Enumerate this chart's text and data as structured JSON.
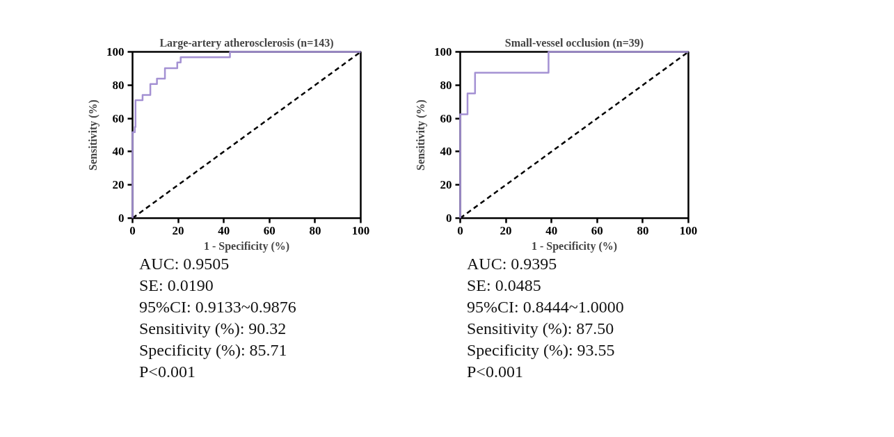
{
  "chart_data": [
    {
      "type": "line",
      "title": "Large-artery atherosclerosis (n=143)",
      "xlabel": "1 - Specificity (%)",
      "ylabel": "Sensitivity (%)",
      "xlim": [
        0,
        100
      ],
      "ylim": [
        0,
        100
      ],
      "xticks": [
        0,
        20,
        40,
        60,
        80,
        100
      ],
      "yticks": [
        0,
        20,
        40,
        60,
        80,
        100
      ],
      "grid": false,
      "series": [
        {
          "color": "#000000",
          "line_style": "dashed",
          "x": [
            0,
            100
          ],
          "values": [
            0,
            100
          ]
        },
        {
          "color": "#a491d3",
          "line_style": "solid",
          "x": [
            0,
            0,
            1.0,
            1.0,
            1.3,
            1.3,
            4.4,
            4.4,
            7.8,
            7.8,
            10.7,
            10.7,
            14.2,
            14.2,
            19.6,
            19.6,
            21.1,
            21.1,
            42.7,
            42.7,
            100
          ],
          "values": [
            0,
            51.7,
            51.7,
            54.8,
            54.8,
            70.9,
            70.9,
            74.1,
            74.1,
            80.6,
            80.6,
            83.9,
            83.9,
            90.2,
            90.2,
            93.6,
            93.6,
            96.8,
            96.8,
            100,
            100
          ]
        }
      ],
      "annotations": [
        "AUC: 0.9505",
        "SE: 0.0190",
        "95%CI: 0.9133~0.9876",
        "Sensitivity (%): 90.32",
        "Specificity (%): 85.71",
        "P<0.001"
      ]
    },
    {
      "type": "line",
      "title": "Small-vessel occlusion (n=39)",
      "xlabel": "1 - Specificity (%)",
      "ylabel": "Sensitivity (%)",
      "xlim": [
        0,
        100
      ],
      "ylim": [
        0,
        100
      ],
      "xticks": [
        0,
        20,
        40,
        60,
        80,
        100
      ],
      "yticks": [
        0,
        20,
        40,
        60,
        80,
        100
      ],
      "grid": false,
      "series": [
        {
          "color": "#000000",
          "line_style": "dashed",
          "x": [
            0,
            100
          ],
          "values": [
            0,
            100
          ]
        },
        {
          "color": "#a491d3",
          "line_style": "solid",
          "x": [
            0,
            0,
            3.2,
            3.2,
            6.5,
            6.5,
            38.7,
            38.7,
            100
          ],
          "values": [
            0,
            62.5,
            62.5,
            75.0,
            75.0,
            87.5,
            87.5,
            100,
            100
          ]
        }
      ],
      "annotations": [
        "AUC: 0.9395",
        "SE: 0.0485",
        "95%CI: 0.8444~1.0000",
        "Sensitivity (%): 87.50",
        "Specificity (%): 93.55",
        "P<0.001"
      ]
    }
  ]
}
